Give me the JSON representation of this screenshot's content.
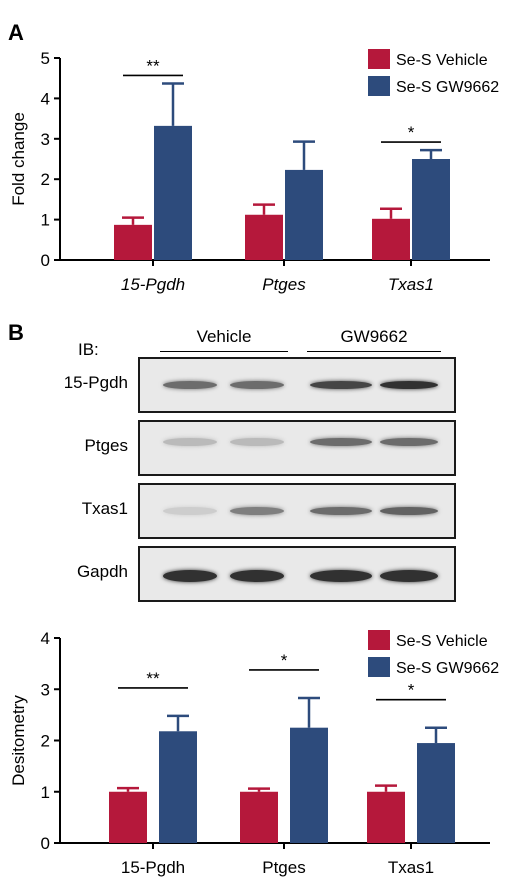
{
  "panel_a": {
    "letter": "A"
  },
  "panel_b": {
    "letter": "B"
  },
  "colors": {
    "vehicle": "#b5183b",
    "gw9662": "#2d4b7c"
  },
  "western_blot": {
    "ib_label": "IB:",
    "groups": [
      "Vehicle",
      "GW9662"
    ],
    "rows": [
      {
        "label": "15-Pgdh",
        "intensity": [
          0.55,
          0.55,
          0.75,
          0.85
        ]
      },
      {
        "label": "Ptges",
        "intensity": [
          0.15,
          0.15,
          0.55,
          0.55
        ]
      },
      {
        "label": "Txas1",
        "intensity": [
          0.05,
          0.45,
          0.55,
          0.6
        ]
      },
      {
        "label": "Gapdh",
        "intensity": [
          0.85,
          0.85,
          0.85,
          0.85
        ]
      }
    ]
  },
  "chart_data": [
    {
      "type": "bar",
      "panel": "A",
      "categories": [
        "15-Pgdh",
        "Ptges",
        "Txas1"
      ],
      "italic_categories": true,
      "ylabel": "Fold change",
      "ylim": [
        0,
        5
      ],
      "yticks": [
        0,
        1,
        2,
        3,
        4,
        5
      ],
      "series": [
        {
          "name": "Se-S Vehicle",
          "values": [
            0.87,
            1.12,
            1.02
          ],
          "errors": [
            0.18,
            0.25,
            0.25
          ]
        },
        {
          "name": "Se-S GW9662",
          "values": [
            3.32,
            2.23,
            2.5
          ],
          "errors": [
            1.05,
            0.7,
            0.22
          ]
        }
      ],
      "significance": [
        {
          "category": "15-Pgdh",
          "label": "**"
        },
        {
          "category": "Txas1",
          "label": "*"
        }
      ],
      "legend": "top-right"
    },
    {
      "type": "bar",
      "panel": "B",
      "categories": [
        "15-Pgdh",
        "Ptges",
        "Txas1"
      ],
      "italic_categories": false,
      "ylabel": "Desitometry",
      "ylim": [
        0,
        4
      ],
      "yticks": [
        0,
        1,
        2,
        3,
        4
      ],
      "series": [
        {
          "name": "Se-S Vehicle",
          "values": [
            1.0,
            1.0,
            1.0
          ],
          "errors": [
            0.07,
            0.06,
            0.12
          ]
        },
        {
          "name": "Se-S GW9662",
          "values": [
            2.18,
            2.25,
            1.95
          ],
          "errors": [
            0.3,
            0.58,
            0.3
          ]
        }
      ],
      "significance": [
        {
          "category": "15-Pgdh",
          "label": "**"
        },
        {
          "category": "Ptges",
          "label": "*"
        },
        {
          "category": "Txas1",
          "label": "*"
        }
      ],
      "legend": "top-right"
    }
  ]
}
